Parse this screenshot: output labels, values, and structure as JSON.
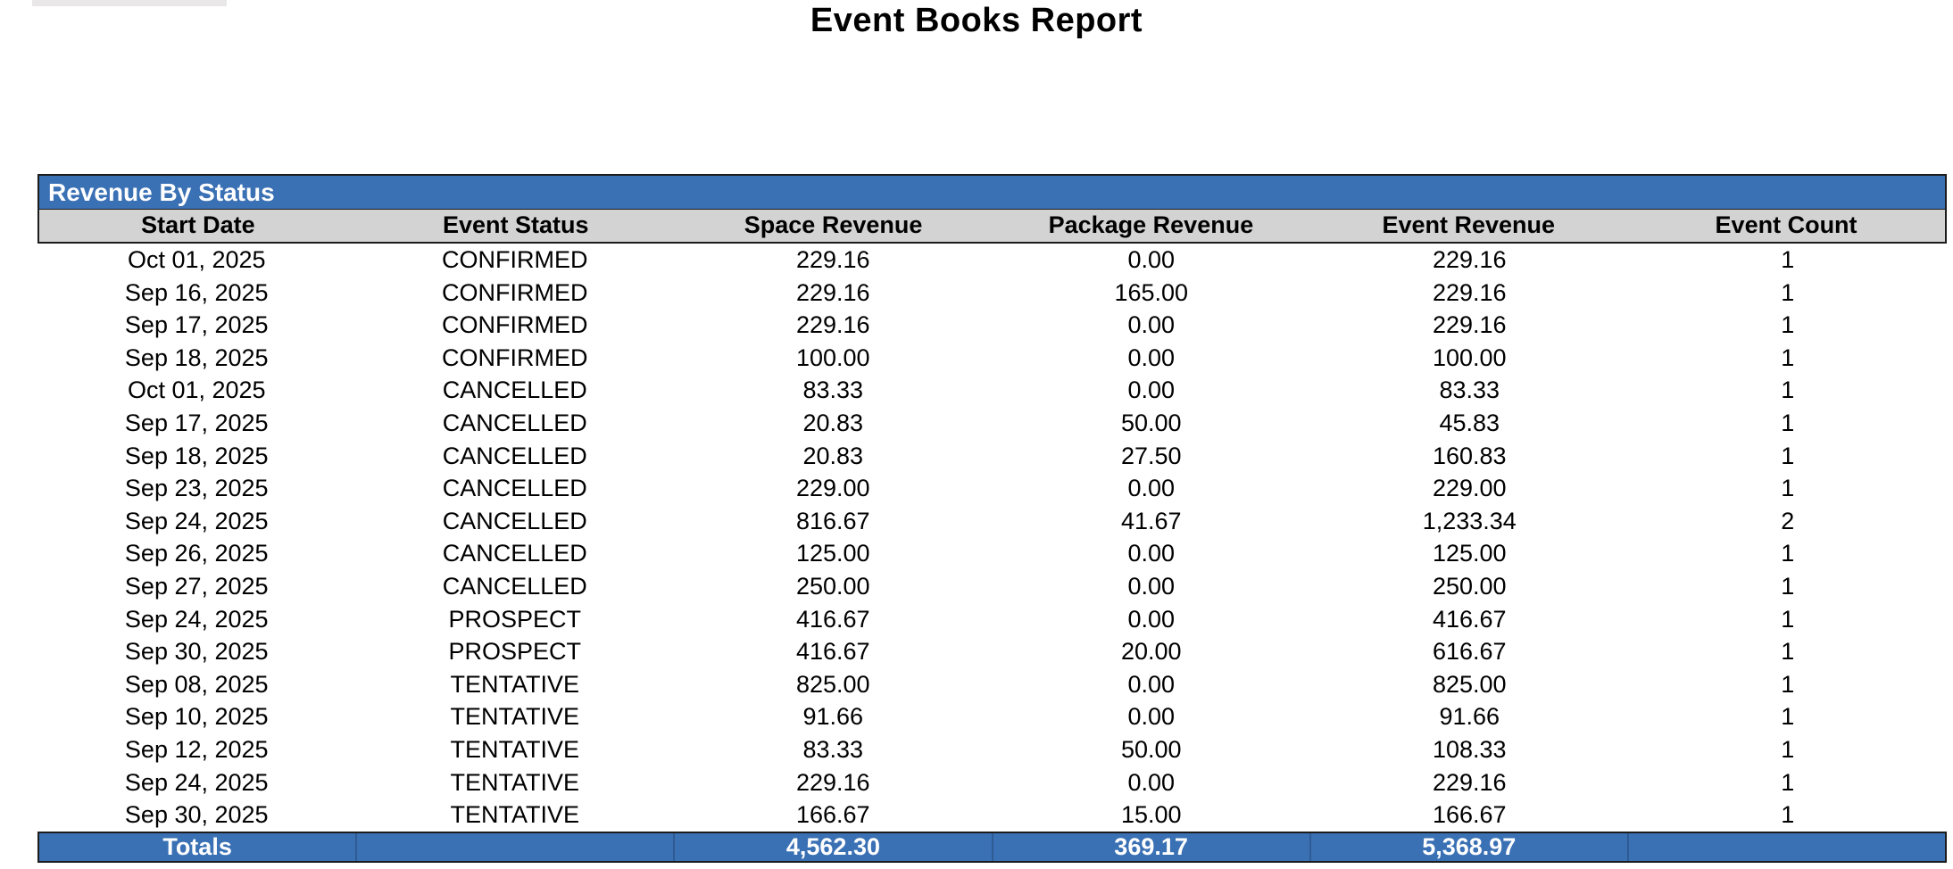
{
  "page": {
    "title": "Event Books Report"
  },
  "section": {
    "title": "Revenue By Status"
  },
  "table": {
    "columns": [
      "Start Date",
      "Event Status",
      "Space Revenue",
      "Package Revenue",
      "Event Revenue",
      "Event Count"
    ],
    "rows": [
      [
        "Oct 01, 2025",
        "CONFIRMED",
        "229.16",
        "0.00",
        "229.16",
        "1"
      ],
      [
        "Sep 16, 2025",
        "CONFIRMED",
        "229.16",
        "165.00",
        "229.16",
        "1"
      ],
      [
        "Sep 17, 2025",
        "CONFIRMED",
        "229.16",
        "0.00",
        "229.16",
        "1"
      ],
      [
        "Sep 18, 2025",
        "CONFIRMED",
        "100.00",
        "0.00",
        "100.00",
        "1"
      ],
      [
        "Oct 01, 2025",
        "CANCELLED",
        "83.33",
        "0.00",
        "83.33",
        "1"
      ],
      [
        "Sep 17, 2025",
        "CANCELLED",
        "20.83",
        "50.00",
        "45.83",
        "1"
      ],
      [
        "Sep 18, 2025",
        "CANCELLED",
        "20.83",
        "27.50",
        "160.83",
        "1"
      ],
      [
        "Sep 23, 2025",
        "CANCELLED",
        "229.00",
        "0.00",
        "229.00",
        "1"
      ],
      [
        "Sep 24, 2025",
        "CANCELLED",
        "816.67",
        "41.67",
        "1,233.34",
        "2"
      ],
      [
        "Sep 26, 2025",
        "CANCELLED",
        "125.00",
        "0.00",
        "125.00",
        "1"
      ],
      [
        "Sep 27, 2025",
        "CANCELLED",
        "250.00",
        "0.00",
        "250.00",
        "1"
      ],
      [
        "Sep 24, 2025",
        "PROSPECT",
        "416.67",
        "0.00",
        "416.67",
        "1"
      ],
      [
        "Sep 30, 2025",
        "PROSPECT",
        "416.67",
        "20.00",
        "616.67",
        "1"
      ],
      [
        "Sep 08, 2025",
        "TENTATIVE",
        "825.00",
        "0.00",
        "825.00",
        "1"
      ],
      [
        "Sep 10, 2025",
        "TENTATIVE",
        "91.66",
        "0.00",
        "91.66",
        "1"
      ],
      [
        "Sep 12, 2025",
        "TENTATIVE",
        "83.33",
        "50.00",
        "108.33",
        "1"
      ],
      [
        "Sep 24, 2025",
        "TENTATIVE",
        "229.16",
        "0.00",
        "229.16",
        "1"
      ],
      [
        "Sep 30, 2025",
        "TENTATIVE",
        "166.67",
        "15.00",
        "166.67",
        "1"
      ]
    ],
    "totals": [
      "Totals",
      "",
      "4,562.30",
      "369.17",
      "5,368.97",
      ""
    ]
  },
  "colors": {
    "accent_blue": "#3a70b4",
    "header_gray": "#d3d3d3",
    "border_dark": "#1c1c1c"
  }
}
